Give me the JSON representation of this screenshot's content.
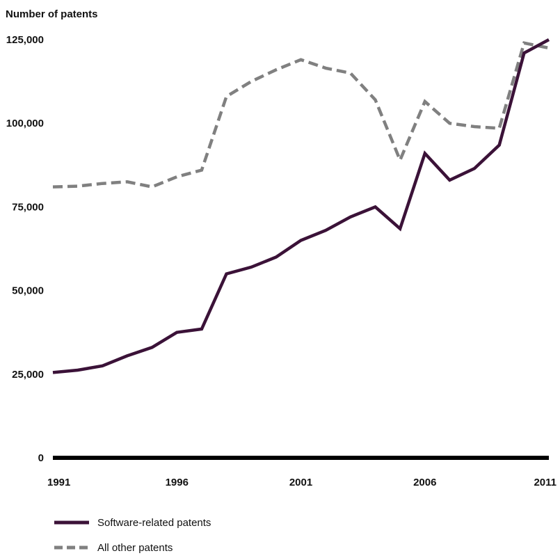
{
  "chart_data": {
    "type": "line",
    "ylabel": "Number of patents",
    "xlabel": "",
    "title": "",
    "x": [
      1991,
      1992,
      1993,
      1994,
      1995,
      1996,
      1997,
      1998,
      1999,
      2000,
      2001,
      2002,
      2003,
      2004,
      2005,
      2006,
      2007,
      2008,
      2009,
      2010,
      2011
    ],
    "xticks": [
      "1991",
      "1996",
      "2001",
      "2006",
      "2011"
    ],
    "yticks": [
      "0",
      "25,000",
      "50,000",
      "75,000",
      "100,000",
      "125,000"
    ],
    "ylim": [
      0,
      125000
    ],
    "xlim": [
      1991,
      2011
    ],
    "grid": false,
    "legend_position": "bottom-left",
    "series": [
      {
        "name": "Software-related patents",
        "style": "solid",
        "color": "#3b1238",
        "values": [
          25500,
          26200,
          27500,
          30500,
          33000,
          37500,
          38500,
          55000,
          57000,
          60000,
          65000,
          68000,
          72000,
          75000,
          68500,
          91000,
          83000,
          86500,
          93500,
          121000,
          125000
        ]
      },
      {
        "name": "All other patents",
        "style": "dashed",
        "color": "#808080",
        "values": [
          81000,
          81200,
          82000,
          82500,
          81000,
          84000,
          86000,
          108000,
          112500,
          116000,
          119000,
          116500,
          115000,
          107000,
          89000,
          106500,
          100000,
          99000,
          98500,
          124000,
          122500
        ]
      }
    ]
  }
}
